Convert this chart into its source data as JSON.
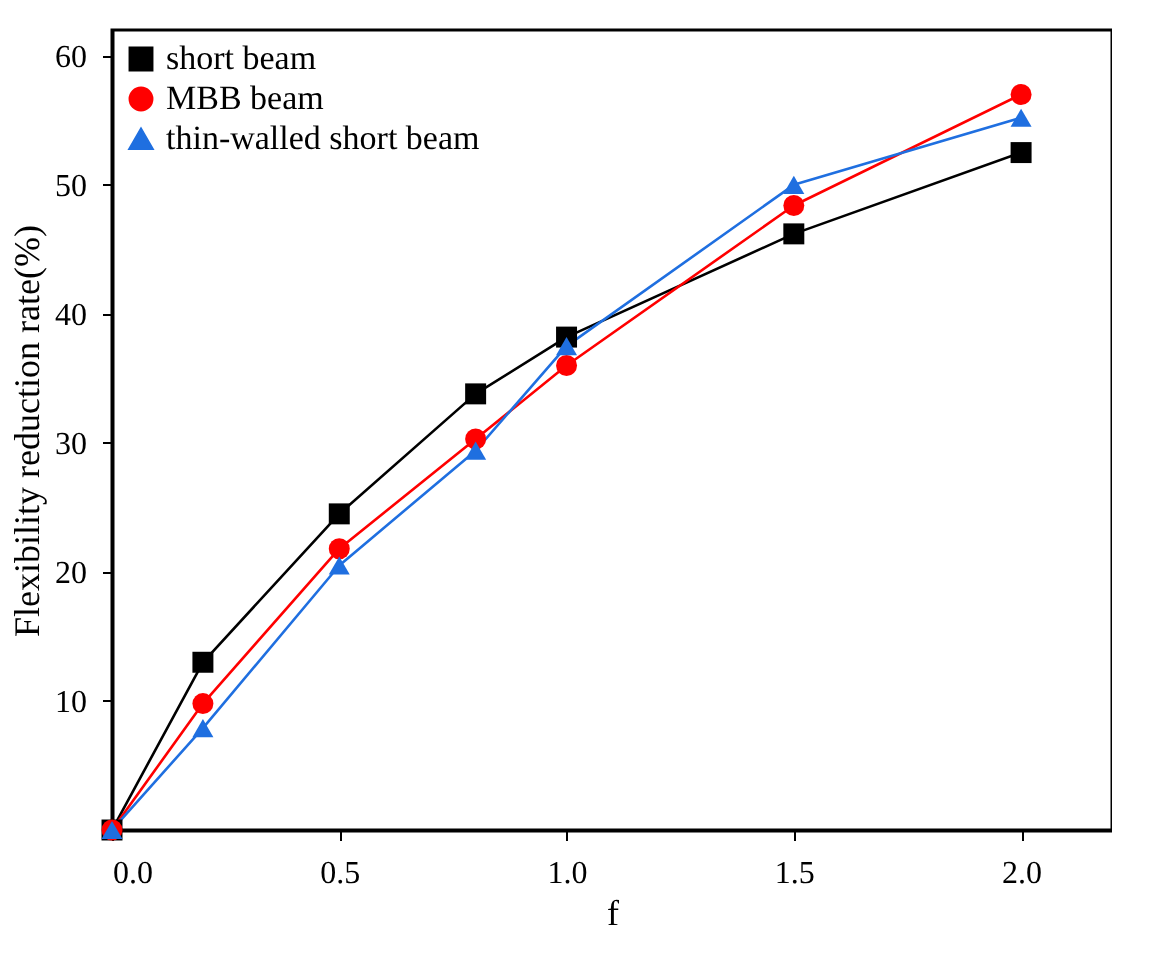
{
  "chart_data": {
    "type": "line",
    "xlabel": "f",
    "ylabel": "Flexibility reduction rate(%)",
    "x": [
      0,
      0.2,
      0.5,
      0.8,
      1.0,
      1.5,
      2.0
    ],
    "series": [
      {
        "name": "short beam",
        "color": "#000000",
        "marker": "square",
        "values": [
          0,
          13.0,
          24.5,
          33.8,
          38.2,
          46.2,
          52.5
        ]
      },
      {
        "name": "MBB beam",
        "color": "#ff0000",
        "marker": "circle",
        "values": [
          0,
          9.8,
          21.8,
          30.3,
          36.0,
          48.4,
          57.0
        ]
      },
      {
        "name": "thin-walled short beam",
        "color": "#1f6fe0",
        "marker": "triangle",
        "values": [
          0,
          7.9,
          20.5,
          29.4,
          37.5,
          50.0,
          55.2
        ]
      }
    ],
    "xlim": [
      0,
      2.2
    ],
    "xticks": [
      {
        "value": 0,
        "label": "0.0"
      },
      0.5,
      {
        "value": 1,
        "label": "1.0"
      },
      1.5,
      {
        "value": 2,
        "label": "2.0"
      }
    ],
    "ylim": [
      0,
      62
    ],
    "yticks": [
      10,
      20,
      30,
      40,
      50,
      60
    ],
    "legend": "top left",
    "grid": false,
    "line_style": "solid"
  }
}
